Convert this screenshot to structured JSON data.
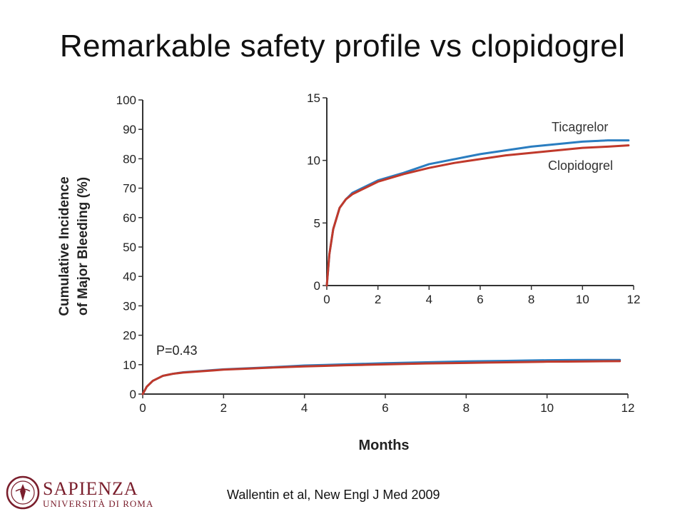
{
  "slide": {
    "title": "Remarkable safety profile vs clopidogrel",
    "citation": "Wallentin et al, New Engl J Med 2009"
  },
  "logo": {
    "name": "SAPIENZA",
    "subtitle": "UNIVERSITÀ DI ROMA",
    "brand_color": "#7a1e2c"
  },
  "colors": {
    "ticagrelor": "#2a7dc0",
    "clopidogrel": "#c0392b",
    "axis": "#333333"
  },
  "chart_data": [
    {
      "type": "line",
      "id": "main",
      "xlabel": "Months",
      "ylabel": "Cumulative Incidence of Major Bleeding (%)",
      "ylabel_lines": [
        "Cumulative Incidence",
        "of Major Bleeding (%)"
      ],
      "xlim": [
        0,
        12
      ],
      "ylim": [
        0,
        100
      ],
      "xticks": [
        0,
        2,
        4,
        6,
        8,
        10,
        12
      ],
      "yticks": [
        0,
        10,
        20,
        30,
        40,
        50,
        60,
        70,
        80,
        90,
        100
      ],
      "annotation": "P=0.43",
      "series": [
        {
          "name": "Ticagrelor",
          "x": [
            0,
            0.1,
            0.25,
            0.5,
            0.75,
            1,
            1.5,
            2,
            3,
            4,
            5,
            6,
            7,
            8,
            9,
            10,
            11,
            11.8
          ],
          "y": [
            0,
            2.5,
            4.5,
            6.2,
            6.9,
            7.4,
            7.9,
            8.4,
            9,
            9.7,
            10.1,
            10.5,
            10.8,
            11.1,
            11.3,
            11.5,
            11.6,
            11.6
          ]
        },
        {
          "name": "Clopidogrel",
          "x": [
            0,
            0.1,
            0.25,
            0.5,
            0.75,
            1,
            1.5,
            2,
            3,
            4,
            5,
            6,
            7,
            8,
            9,
            10,
            11,
            11.8
          ],
          "y": [
            0,
            2.5,
            4.5,
            6.2,
            6.9,
            7.3,
            7.8,
            8.3,
            8.9,
            9.4,
            9.8,
            10.1,
            10.4,
            10.6,
            10.8,
            11,
            11.1,
            11.2
          ]
        }
      ]
    },
    {
      "type": "line",
      "id": "inset",
      "xlim": [
        0,
        12
      ],
      "ylim": [
        0,
        15
      ],
      "xticks": [
        0,
        2,
        4,
        6,
        8,
        10,
        12
      ],
      "yticks": [
        0,
        5,
        10,
        15
      ],
      "series_labels": [
        "Ticagrelor",
        "Clopidogrel"
      ]
    }
  ]
}
